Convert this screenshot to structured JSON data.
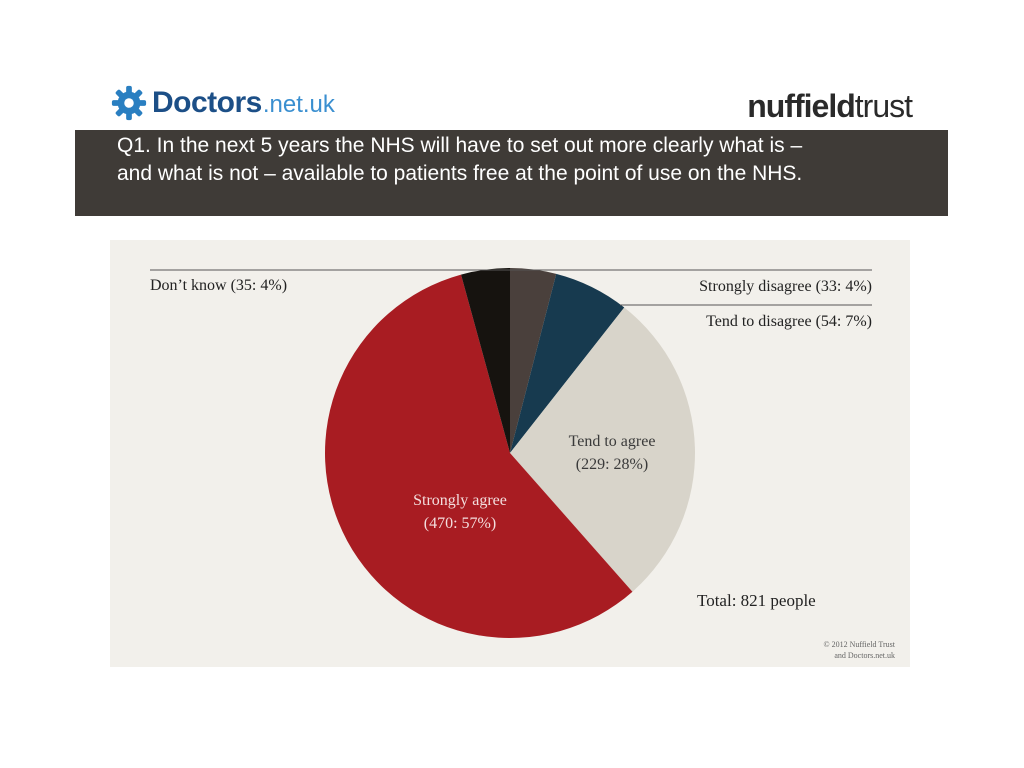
{
  "header": {
    "logo_left_main": "Doctors",
    "logo_left_sub": ".net.uk",
    "logo_right_a": "nuffield",
    "logo_right_b": "trust",
    "logo_left_icon": "gear-icon"
  },
  "banner": {
    "question": "Q1. In the next 5 years the NHS will have to set out more clearly what is – and what is not – available to patients free at the point of use on the NHS."
  },
  "chart_data": {
    "type": "pie",
    "slices": [
      {
        "label": "Strongly disagree",
        "count": 33,
        "percent": 4,
        "text": "Strongly disagree (33: 4%)",
        "color": "#4a403c"
      },
      {
        "label": "Tend to disagree",
        "count": 54,
        "percent": 7,
        "text": "Tend to disagree (54: 7%)",
        "color": "#173a4f"
      },
      {
        "label": "Tend to agree",
        "count": 229,
        "percent": 28,
        "text_line1": "Tend to agree",
        "text_line2": "(229: 28%)",
        "color": "#d8d4ca"
      },
      {
        "label": "Strongly agree",
        "count": 470,
        "percent": 57,
        "text_line1": "Strongly agree",
        "text_line2": "(470: 57%)",
        "color": "#a81c22"
      },
      {
        "label": "Don't know",
        "count": 35,
        "percent": 4,
        "text": "Don’t know (35: 4%)",
        "color": "#16130f"
      }
    ],
    "total_text": "Total: 821 people",
    "copyright_line1": "© 2012 Nuffield Trust",
    "copyright_line2": "and Doctors.net.uk"
  }
}
